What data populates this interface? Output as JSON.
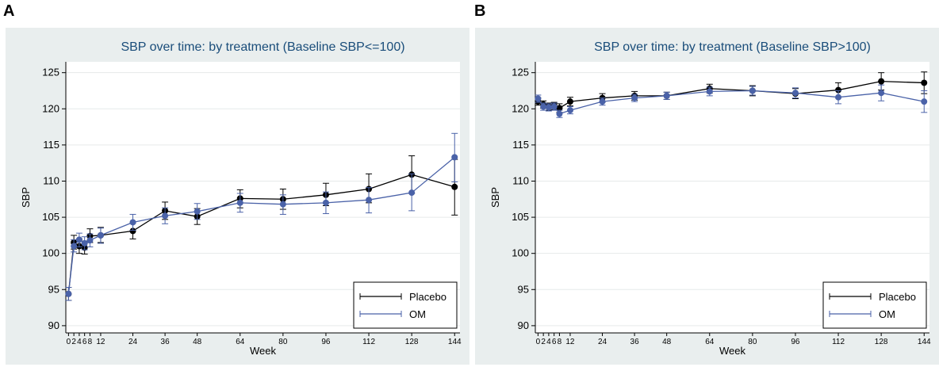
{
  "panels": [
    {
      "letter": "A"
    },
    {
      "letter": "B"
    }
  ],
  "legend": {
    "placebo": "Placebo",
    "om": "OM"
  },
  "colors": {
    "placebo": "#000000",
    "om": "#4a62a8",
    "panel_bg": "#e9eeee",
    "plot_bg": "#ffffff"
  },
  "chart_data": [
    {
      "type": "line",
      "title": "SBP over time: by treatment (Baseline SBP<=100)",
      "xlabel": "Week",
      "ylabel": "SBP",
      "x": [
        0,
        2,
        4,
        6,
        8,
        12,
        24,
        36,
        48,
        64,
        80,
        96,
        112,
        128,
        144
      ],
      "x_ticks": [
        0,
        2,
        4,
        6,
        8,
        12,
        24,
        36,
        48,
        64,
        80,
        96,
        112,
        128,
        144
      ],
      "y_ticks": [
        90,
        95,
        100,
        105,
        110,
        115,
        120,
        125
      ],
      "ylim": [
        89,
        126.5
      ],
      "grid": true,
      "legend_position": "bottom-right",
      "error_bars": true,
      "series": [
        {
          "name": "Placebo",
          "values": [
            94.4,
            101.5,
            101.0,
            100.8,
            102.4,
            102.5,
            103.1,
            105.9,
            105.1,
            107.6,
            107.5,
            108.1,
            108.9,
            110.9,
            109.2
          ],
          "lower": [
            93.5,
            100.6,
            100.0,
            99.9,
            101.5,
            101.5,
            102.0,
            104.7,
            104.0,
            106.3,
            106.1,
            106.6,
            107.0,
            108.3,
            105.3
          ],
          "upper": [
            95.3,
            102.5,
            102.0,
            101.7,
            103.4,
            103.6,
            104.2,
            107.1,
            106.2,
            108.8,
            108.9,
            109.7,
            111.0,
            113.5,
            113.0
          ]
        },
        {
          "name": "OM",
          "values": [
            94.4,
            101.0,
            101.9,
            101.4,
            101.8,
            102.5,
            104.3,
            105.2,
            105.8,
            107.0,
            106.8,
            107.0,
            107.4,
            108.4,
            113.3
          ],
          "lower": [
            93.5,
            100.2,
            100.9,
            100.5,
            100.9,
            101.4,
            103.2,
            104.1,
            104.7,
            105.7,
            105.4,
            105.5,
            105.6,
            105.9,
            109.9
          ],
          "upper": [
            95.3,
            101.9,
            102.8,
            102.3,
            102.7,
            103.5,
            105.4,
            106.3,
            106.9,
            108.3,
            108.1,
            108.5,
            109.1,
            111.0,
            116.6
          ]
        }
      ]
    },
    {
      "type": "line",
      "title": "SBP over time: by treatment (Baseline SBP>100)",
      "xlabel": "Week",
      "ylabel": "SBP",
      "x": [
        0,
        2,
        4,
        6,
        8,
        12,
        24,
        36,
        48,
        64,
        80,
        96,
        112,
        128,
        144
      ],
      "x_ticks": [
        0,
        2,
        4,
        6,
        8,
        12,
        24,
        36,
        48,
        64,
        80,
        96,
        112,
        128,
        144
      ],
      "y_ticks": [
        90,
        95,
        100,
        105,
        110,
        115,
        120,
        125
      ],
      "ylim": [
        89,
        126.5
      ],
      "grid": true,
      "legend_position": "bottom-right",
      "error_bars": true,
      "series": [
        {
          "name": "Placebo",
          "values": [
            121.0,
            120.6,
            120.3,
            120.4,
            120.1,
            121.0,
            121.5,
            121.8,
            121.8,
            122.8,
            122.5,
            122.1,
            122.6,
            123.8,
            123.6
          ],
          "lower": [
            120.5,
            120.1,
            119.8,
            119.9,
            119.5,
            120.4,
            120.9,
            121.2,
            121.3,
            122.2,
            121.8,
            121.4,
            121.6,
            122.6,
            122.1
          ],
          "upper": [
            121.5,
            121.1,
            120.8,
            120.9,
            120.7,
            121.6,
            122.1,
            122.4,
            122.3,
            123.4,
            123.2,
            122.8,
            123.6,
            125.0,
            125.1
          ]
        },
        {
          "name": "OM",
          "values": [
            121.4,
            120.3,
            120.2,
            120.3,
            119.3,
            119.8,
            121.0,
            121.5,
            121.8,
            122.4,
            122.5,
            122.2,
            121.6,
            122.2,
            121.0
          ],
          "lower": [
            120.9,
            119.8,
            119.7,
            119.8,
            118.8,
            119.3,
            120.5,
            121.0,
            121.3,
            121.8,
            121.9,
            121.5,
            120.7,
            121.1,
            119.5
          ],
          "upper": [
            121.9,
            120.8,
            120.7,
            120.8,
            119.8,
            120.3,
            121.5,
            122.0,
            122.3,
            123.0,
            123.1,
            122.9,
            122.5,
            123.3,
            122.5
          ]
        }
      ]
    }
  ]
}
